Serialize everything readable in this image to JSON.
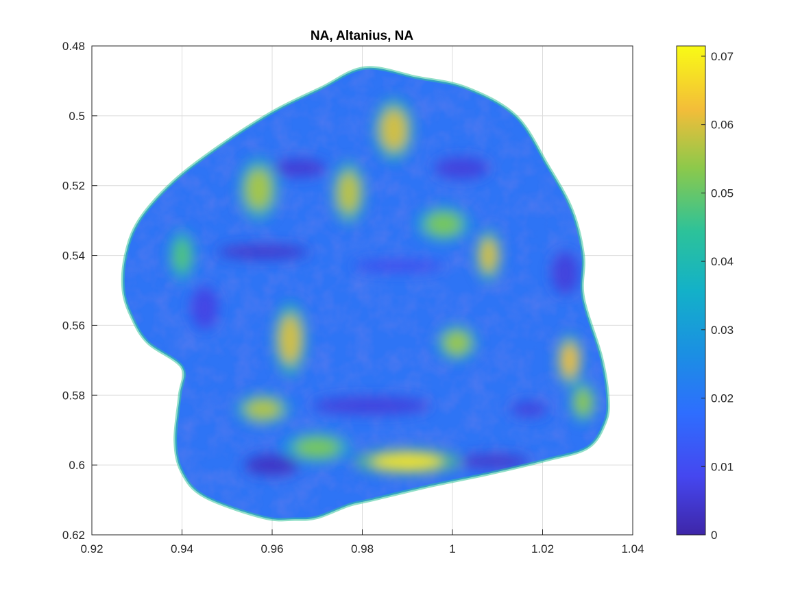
{
  "chart_data": {
    "type": "heatmap",
    "title": "NA, Altanius, NA",
    "xlabel": "",
    "ylabel": "",
    "xlim": [
      0.92,
      1.04
    ],
    "ylim": [
      0.48,
      0.62
    ],
    "y_reversed": true,
    "grid": true,
    "colormap": "parula",
    "xticks": [
      0.92,
      0.94,
      0.96,
      0.98,
      1,
      1.02,
      1.04
    ],
    "xtick_labels": [
      "0.92",
      "0.94",
      "0.96",
      "0.98",
      "1",
      "1.02",
      "1.04"
    ],
    "yticks": [
      0.48,
      0.5,
      0.52,
      0.54,
      0.56,
      0.58,
      0.6,
      0.62
    ],
    "ytick_labels": [
      "0.48",
      "0.5",
      "0.52",
      "0.54",
      "0.56",
      "0.58",
      "0.6",
      "0.62"
    ],
    "colorbar": {
      "range": [
        0,
        0.0715
      ],
      "ticks": [
        0,
        0.01,
        0.02,
        0.03,
        0.04,
        0.05,
        0.06,
        0.07
      ],
      "tick_labels": [
        "0",
        "0.01",
        "0.02",
        "0.03",
        "0.04",
        "0.05",
        "0.06",
        "0.07"
      ]
    },
    "outline": [
      [
        0.9806,
        0.4863
      ],
      [
        0.992,
        0.489
      ],
      [
        1.003,
        0.492
      ],
      [
        1.014,
        0.5
      ],
      [
        1.021,
        0.514
      ],
      [
        1.0265,
        0.527
      ],
      [
        1.029,
        0.54
      ],
      [
        1.029,
        0.552
      ],
      [
        1.033,
        0.569
      ],
      [
        1.0345,
        0.581
      ],
      [
        1.0338,
        0.588
      ],
      [
        1.03,
        0.595
      ],
      [
        1.021,
        0.5985
      ],
      [
        1.008,
        0.6025
      ],
      [
        0.995,
        0.606
      ],
      [
        0.982,
        0.61
      ],
      [
        0.977,
        0.6115
      ],
      [
        0.97,
        0.615
      ],
      [
        0.965,
        0.6155
      ],
      [
        0.958,
        0.615
      ],
      [
        0.945,
        0.609
      ],
      [
        0.94,
        0.602
      ],
      [
        0.9385,
        0.593
      ],
      [
        0.9395,
        0.58
      ],
      [
        0.94,
        0.572
      ],
      [
        0.9325,
        0.565
      ],
      [
        0.929,
        0.558
      ],
      [
        0.927,
        0.55
      ],
      [
        0.9275,
        0.54
      ],
      [
        0.9305,
        0.53
      ],
      [
        0.938,
        0.519
      ],
      [
        0.948,
        0.509
      ],
      [
        0.96,
        0.499
      ],
      [
        0.971,
        0.492
      ]
    ],
    "hotspots": [
      {
        "x": 0.99,
        "y": 0.599,
        "rx": 0.008,
        "ry": 0.0025,
        "value": 0.068
      },
      {
        "x": 0.987,
        "y": 0.504,
        "rx": 0.003,
        "ry": 0.006,
        "value": 0.06
      },
      {
        "x": 0.977,
        "y": 0.522,
        "rx": 0.0025,
        "ry": 0.006,
        "value": 0.058
      },
      {
        "x": 0.957,
        "y": 0.521,
        "rx": 0.003,
        "ry": 0.006,
        "value": 0.056
      },
      {
        "x": 0.964,
        "y": 0.564,
        "rx": 0.0025,
        "ry": 0.007,
        "value": 0.06
      },
      {
        "x": 0.958,
        "y": 0.584,
        "rx": 0.004,
        "ry": 0.003,
        "value": 0.057
      },
      {
        "x": 1.008,
        "y": 0.54,
        "rx": 0.002,
        "ry": 0.005,
        "value": 0.06
      },
      {
        "x": 1.026,
        "y": 0.57,
        "rx": 0.002,
        "ry": 0.005,
        "value": 0.062
      },
      {
        "x": 0.998,
        "y": 0.531,
        "rx": 0.004,
        "ry": 0.0035,
        "value": 0.052
      },
      {
        "x": 1.001,
        "y": 0.565,
        "rx": 0.003,
        "ry": 0.0035,
        "value": 0.055
      },
      {
        "x": 0.97,
        "y": 0.595,
        "rx": 0.005,
        "ry": 0.003,
        "value": 0.052
      },
      {
        "x": 0.94,
        "y": 0.54,
        "rx": 0.002,
        "ry": 0.005,
        "value": 0.048
      },
      {
        "x": 1.029,
        "y": 0.582,
        "rx": 0.002,
        "ry": 0.004,
        "value": 0.054
      }
    ],
    "coldspots": [
      {
        "x": 0.958,
        "y": 0.539,
        "rx": 0.01,
        "ry": 0.002,
        "value": 0.004
      },
      {
        "x": 0.96,
        "y": 0.6,
        "rx": 0.006,
        "ry": 0.003,
        "value": 0.003
      },
      {
        "x": 0.966,
        "y": 0.515,
        "rx": 0.006,
        "ry": 0.0025,
        "value": 0.005
      },
      {
        "x": 1.002,
        "y": 0.515,
        "rx": 0.006,
        "ry": 0.003,
        "value": 0.006
      },
      {
        "x": 0.982,
        "y": 0.583,
        "rx": 0.013,
        "ry": 0.0025,
        "value": 0.006
      },
      {
        "x": 1.009,
        "y": 0.599,
        "rx": 0.008,
        "ry": 0.002,
        "value": 0.004
      },
      {
        "x": 1.025,
        "y": 0.545,
        "rx": 0.003,
        "ry": 0.006,
        "value": 0.006
      },
      {
        "x": 0.945,
        "y": 0.555,
        "rx": 0.003,
        "ry": 0.006,
        "value": 0.007
      },
      {
        "x": 0.988,
        "y": 0.543,
        "rx": 0.01,
        "ry": 0.0015,
        "value": 0.008
      },
      {
        "x": 1.017,
        "y": 0.584,
        "rx": 0.004,
        "ry": 0.002,
        "value": 0.006
      }
    ]
  }
}
